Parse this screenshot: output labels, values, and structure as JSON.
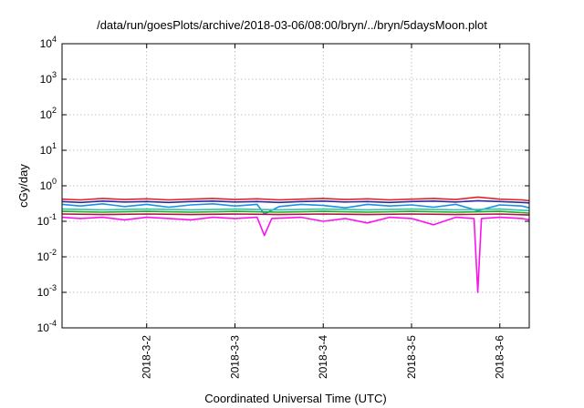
{
  "chart_data": {
    "type": "line",
    "title": "/data/run/goesPlots/archive/2018-03-06/08:00/bryn/../bryn/5daysMoon.plot",
    "xlabel": "Coordinated Universal Time (UTC)",
    "ylabel": "cGy/day",
    "yscale": "log",
    "ylim": [
      0.0001,
      10000
    ],
    "xlim": [
      "2018-03-01 01:00",
      "2018-03-06 08:00"
    ],
    "yticks": [
      {
        "value": 0.0001,
        "base": "10",
        "exp": "-4"
      },
      {
        "value": 0.001,
        "base": "10",
        "exp": "-3"
      },
      {
        "value": 0.01,
        "base": "10",
        "exp": "-2"
      },
      {
        "value": 0.1,
        "base": "10",
        "exp": "-1"
      },
      {
        "value": 1,
        "base": "10",
        "exp": "0"
      },
      {
        "value": 10,
        "base": "10",
        "exp": "1"
      },
      {
        "value": 100,
        "base": "10",
        "exp": "2"
      },
      {
        "value": 1000,
        "base": "10",
        "exp": "3"
      },
      {
        "value": 10000,
        "base": "10",
        "exp": "4"
      }
    ],
    "xticks": [
      "2018-3-2",
      "2018-3-3",
      "2018-3-4",
      "2018-3-5",
      "2018-3-6"
    ],
    "grid": true,
    "series": [
      {
        "color": "#e0232b",
        "x": [
          "2018-03-01 01:00",
          "2018-03-01 06:00",
          "2018-03-01 12:00",
          "2018-03-01 18:00",
          "2018-03-02 00:00",
          "2018-03-02 06:00",
          "2018-03-02 12:00",
          "2018-03-02 18:00",
          "2018-03-03 00:00",
          "2018-03-03 06:00",
          "2018-03-03 12:00",
          "2018-03-03 18:00",
          "2018-03-04 00:00",
          "2018-03-04 06:00",
          "2018-03-04 12:00",
          "2018-03-04 18:00",
          "2018-03-05 00:00",
          "2018-03-05 06:00",
          "2018-03-05 12:00",
          "2018-03-05 18:00",
          "2018-03-06 00:00",
          "2018-03-06 06:00",
          "2018-03-06 08:00"
        ],
        "y": [
          0.42,
          0.4,
          0.44,
          0.41,
          0.43,
          0.4,
          0.42,
          0.44,
          0.41,
          0.43,
          0.4,
          0.42,
          0.44,
          0.41,
          0.43,
          0.4,
          0.42,
          0.44,
          0.41,
          0.48,
          0.42,
          0.4,
          0.38
        ]
      },
      {
        "color": "#2b2b9e",
        "x": [
          "2018-03-01 01:00",
          "2018-03-01 06:00",
          "2018-03-01 12:00",
          "2018-03-01 18:00",
          "2018-03-02 00:00",
          "2018-03-02 06:00",
          "2018-03-02 12:00",
          "2018-03-02 18:00",
          "2018-03-03 00:00",
          "2018-03-03 06:00",
          "2018-03-03 12:00",
          "2018-03-03 18:00",
          "2018-03-04 00:00",
          "2018-03-04 06:00",
          "2018-03-04 12:00",
          "2018-03-04 18:00",
          "2018-03-05 00:00",
          "2018-03-05 06:00",
          "2018-03-05 12:00",
          "2018-03-05 18:00",
          "2018-03-06 00:00",
          "2018-03-06 06:00",
          "2018-03-06 08:00"
        ],
        "y": [
          0.36,
          0.34,
          0.37,
          0.35,
          0.36,
          0.34,
          0.36,
          0.37,
          0.35,
          0.36,
          0.34,
          0.36,
          0.37,
          0.35,
          0.36,
          0.34,
          0.36,
          0.37,
          0.35,
          0.38,
          0.36,
          0.34,
          0.33
        ]
      },
      {
        "color": "#1e8fe6",
        "x": [
          "2018-03-01 01:00",
          "2018-03-01 06:00",
          "2018-03-01 12:00",
          "2018-03-01 18:00",
          "2018-03-02 00:00",
          "2018-03-02 06:00",
          "2018-03-02 12:00",
          "2018-03-02 18:00",
          "2018-03-03 00:00",
          "2018-03-03 06:00",
          "2018-03-03 08:00",
          "2018-03-03 12:00",
          "2018-03-03 18:00",
          "2018-03-04 00:00",
          "2018-03-04 06:00",
          "2018-03-04 12:00",
          "2018-03-04 18:00",
          "2018-03-05 00:00",
          "2018-03-05 06:00",
          "2018-03-05 12:00",
          "2018-03-05 18:00",
          "2018-03-06 00:00",
          "2018-03-06 06:00",
          "2018-03-06 08:00"
        ],
        "y": [
          0.3,
          0.27,
          0.31,
          0.26,
          0.3,
          0.25,
          0.29,
          0.31,
          0.27,
          0.3,
          0.16,
          0.26,
          0.3,
          0.28,
          0.24,
          0.3,
          0.27,
          0.29,
          0.25,
          0.3,
          0.2,
          0.29,
          0.27,
          0.24
        ]
      },
      {
        "color": "#2ec7a8",
        "x": [
          "2018-03-01 01:00",
          "2018-03-01 12:00",
          "2018-03-02 00:00",
          "2018-03-02 12:00",
          "2018-03-03 00:00",
          "2018-03-03 12:00",
          "2018-03-04 00:00",
          "2018-03-04 12:00",
          "2018-03-05 00:00",
          "2018-03-05 12:00",
          "2018-03-06 00:00",
          "2018-03-06 08:00"
        ],
        "y": [
          0.22,
          0.21,
          0.22,
          0.21,
          0.22,
          0.21,
          0.22,
          0.21,
          0.22,
          0.21,
          0.22,
          0.2
        ]
      },
      {
        "color": "#22aa22",
        "x": [
          "2018-03-01 01:00",
          "2018-03-01 12:00",
          "2018-03-02 00:00",
          "2018-03-02 12:00",
          "2018-03-03 00:00",
          "2018-03-03 12:00",
          "2018-03-04 00:00",
          "2018-03-04 12:00",
          "2018-03-05 00:00",
          "2018-03-05 12:00",
          "2018-03-06 00:00",
          "2018-03-06 08:00"
        ],
        "y": [
          0.19,
          0.18,
          0.19,
          0.18,
          0.19,
          0.18,
          0.19,
          0.18,
          0.19,
          0.18,
          0.19,
          0.17
        ]
      },
      {
        "color": "#b0124a",
        "x": [
          "2018-03-01 01:00",
          "2018-03-01 12:00",
          "2018-03-02 00:00",
          "2018-03-02 12:00",
          "2018-03-03 00:00",
          "2018-03-03 12:00",
          "2018-03-04 00:00",
          "2018-03-04 12:00",
          "2018-03-05 00:00",
          "2018-03-05 12:00",
          "2018-03-06 00:00",
          "2018-03-06 08:00"
        ],
        "y": [
          0.16,
          0.155,
          0.16,
          0.155,
          0.16,
          0.155,
          0.16,
          0.155,
          0.16,
          0.155,
          0.16,
          0.15
        ]
      },
      {
        "color": "#ff11ee",
        "x": [
          "2018-03-01 01:00",
          "2018-03-01 06:00",
          "2018-03-01 12:00",
          "2018-03-01 18:00",
          "2018-03-02 00:00",
          "2018-03-02 06:00",
          "2018-03-02 12:00",
          "2018-03-02 18:00",
          "2018-03-03 00:00",
          "2018-03-03 06:00",
          "2018-03-03 08:00",
          "2018-03-03 10:00",
          "2018-03-03 18:00",
          "2018-03-04 00:00",
          "2018-03-04 06:00",
          "2018-03-04 12:00",
          "2018-03-04 18:00",
          "2018-03-05 00:00",
          "2018-03-05 06:00",
          "2018-03-05 12:00",
          "2018-03-05 17:00",
          "2018-03-05 18:00",
          "2018-03-05 19:00",
          "2018-03-06 00:00",
          "2018-03-06 06:00",
          "2018-03-06 08:00"
        ],
        "y": [
          0.13,
          0.12,
          0.13,
          0.11,
          0.13,
          0.12,
          0.11,
          0.13,
          0.12,
          0.13,
          0.04,
          0.12,
          0.13,
          0.1,
          0.12,
          0.09,
          0.13,
          0.12,
          0.08,
          0.13,
          0.12,
          0.001,
          0.12,
          0.13,
          0.12,
          0.11
        ]
      }
    ]
  }
}
